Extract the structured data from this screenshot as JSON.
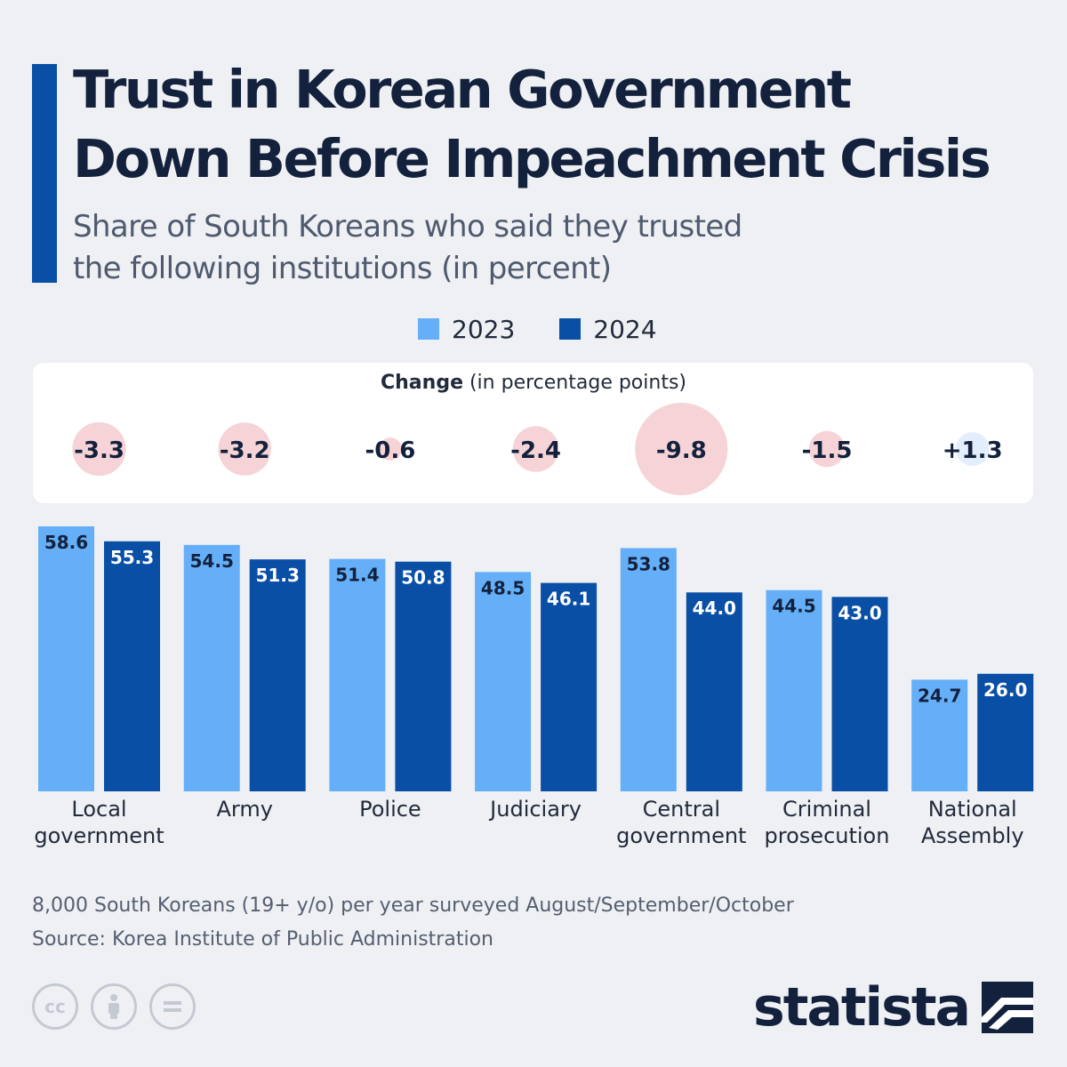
{
  "title_lines": [
    "Trust in Korean Government",
    "Down Before Impeachment Crisis"
  ],
  "subtitle_lines": [
    "Share of South Koreans who said they trusted",
    "the following institutions (in percent)"
  ],
  "legend": [
    {
      "label": "2023",
      "color": "#64aff8"
    },
    {
      "label": "2024",
      "color": "#0a4fa6"
    }
  ],
  "change_title_bold": "Change",
  "change_title_rest": " (in percentage points)",
  "chart_data": {
    "type": "bar",
    "title": "Trust in Korean Government Down Before Impeachment Crisis",
    "subtitle": "Share of South Koreans who said they trusted the following institutions (in percent)",
    "categories": [
      [
        "Local",
        "government"
      ],
      [
        "Army"
      ],
      [
        "Police"
      ],
      [
        "Judiciary"
      ],
      [
        "Central",
        "government"
      ],
      [
        "Criminal",
        "prosecution"
      ],
      [
        "National",
        "Assembly"
      ]
    ],
    "series": [
      {
        "name": "2023",
        "color": "#64aff8",
        "label_color": "#14213d",
        "values": [
          58.6,
          54.5,
          51.4,
          48.5,
          53.8,
          44.5,
          24.7
        ],
        "labels": [
          "58.6",
          "54.5",
          "51.4",
          "48.5",
          "53.8",
          "44.5",
          "24.7"
        ]
      },
      {
        "name": "2024",
        "color": "#0a4fa6",
        "label_color": "#ffffff",
        "values": [
          55.3,
          51.3,
          50.8,
          46.1,
          44.0,
          43.0,
          26.0
        ],
        "labels": [
          "55.3",
          "51.3",
          "50.8",
          "46.1",
          "44.0",
          "43.0",
          "26.0"
        ]
      }
    ],
    "change": {
      "values": [
        -3.3,
        -3.2,
        -0.6,
        -2.4,
        -9.8,
        -1.5,
        1.3
      ],
      "labels": [
        "-3.3",
        "-3.2",
        "-0.6",
        "-2.4",
        "-9.8",
        "-1.5",
        "+1.3"
      ],
      "negative_color": "#f5d3d6",
      "positive_color": "#e3eefc"
    },
    "ylim": [
      0,
      58.6
    ],
    "xlabel": "",
    "ylabel": ""
  },
  "footnote": "8,000 South Koreans (19+ y/o) per year surveyed August/September/October",
  "source": "Source: Korea Institute of Public Administration",
  "logo_text": "statista",
  "license_icons": [
    "cc-icon",
    "attribution-icon",
    "no-derivatives-icon"
  ]
}
